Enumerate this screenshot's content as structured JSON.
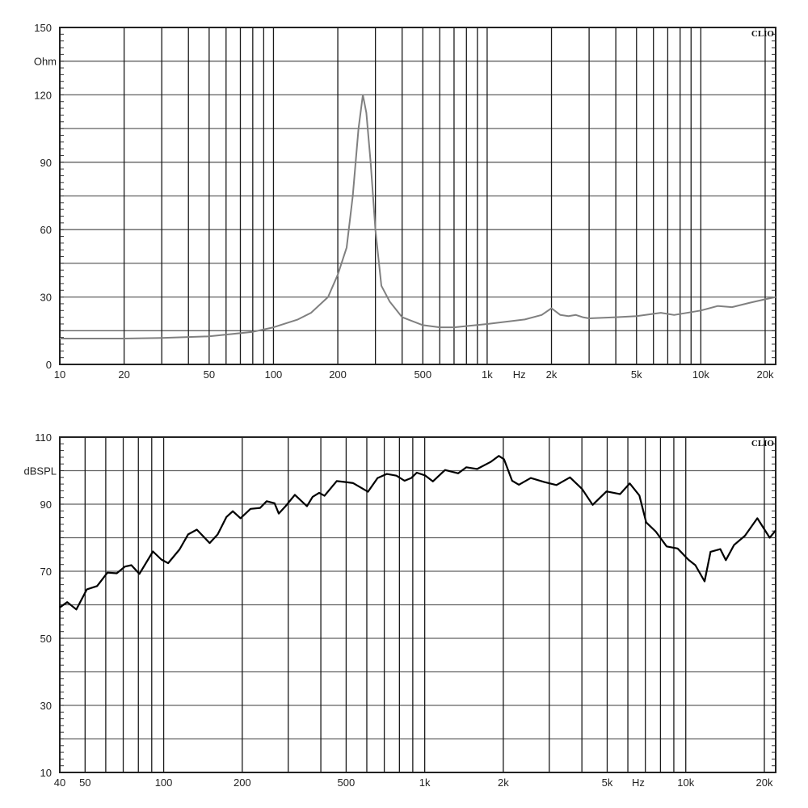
{
  "chart_data": [
    {
      "type": "line",
      "brand": "CLIO",
      "ylabel": "Ohm",
      "xlabel": "Hz",
      "xscale": "log",
      "xlim": [
        10,
        22400
      ],
      "ylim": [
        0,
        150
      ],
      "grid": true,
      "line_color": "#808080",
      "y_ticks": [
        0,
        30,
        60,
        90,
        120,
        150
      ],
      "y_tick_labels": [
        "0",
        "30",
        "60",
        "90",
        "120",
        "150"
      ],
      "y_gridlines": [
        15,
        30,
        45,
        60,
        75,
        90,
        105,
        120,
        135
      ],
      "x_gridlines": [
        20,
        30,
        40,
        50,
        60,
        70,
        80,
        90,
        100,
        200,
        300,
        400,
        500,
        600,
        700,
        800,
        900,
        1000,
        2000,
        3000,
        4000,
        5000,
        6000,
        7000,
        8000,
        9000,
        10000,
        20000
      ],
      "x_ticks": [
        10,
        20,
        50,
        100,
        200,
        500,
        1000,
        2000,
        5000,
        10000,
        20000
      ],
      "x_tick_labels": [
        "10",
        "20",
        "50",
        "100",
        "200",
        "500",
        "1k",
        "2k",
        "5k",
        "10k",
        "20k"
      ],
      "x": [
        10,
        20,
        30,
        50,
        80,
        100,
        130,
        150,
        180,
        200,
        220,
        235,
        250,
        262,
        272,
        285,
        300,
        320,
        350,
        400,
        500,
        600,
        700,
        1000,
        1500,
        1800,
        2000,
        2200,
        2400,
        2600,
        2800,
        3000,
        4000,
        5000,
        6500,
        7500,
        10000,
        12000,
        14000,
        17000,
        20000,
        22400
      ],
      "y": [
        11.5,
        11.5,
        11.8,
        12.5,
        14.5,
        16.5,
        20,
        23,
        30,
        40,
        52,
        75,
        105,
        120,
        112,
        90,
        60,
        35,
        28,
        21,
        17.5,
        16.5,
        16.5,
        18,
        20,
        22,
        25,
        22,
        21.5,
        22,
        21,
        20.5,
        21,
        21.5,
        23,
        22,
        24,
        26,
        25.5,
        27.5,
        29,
        30
      ]
    },
    {
      "type": "line",
      "brand": "CLIO",
      "ylabel": "dBSPL",
      "xlabel": "Hz",
      "xscale": "log",
      "xlim": [
        40,
        22100
      ],
      "ylim": [
        10,
        110
      ],
      "grid": true,
      "line_color": "#000000",
      "y_ticks": [
        10,
        30,
        50,
        70,
        90,
        110
      ],
      "y_tick_labels": [
        "10",
        "30",
        "50",
        "70",
        "90",
        "110"
      ],
      "y_gridlines": [
        20,
        30,
        40,
        50,
        60,
        70,
        80,
        90,
        100
      ],
      "x_gridlines": [
        50,
        60,
        70,
        80,
        90,
        100,
        200,
        300,
        400,
        500,
        600,
        700,
        800,
        900,
        1000,
        2000,
        3000,
        4000,
        5000,
        6000,
        7000,
        8000,
        9000,
        10000,
        20000
      ],
      "x_ticks": [
        40,
        50,
        100,
        200,
        500,
        1000,
        2000,
        5000,
        10000,
        20000
      ],
      "x_tick_labels": [
        "40",
        "50",
        "100",
        "200",
        "500",
        "1k",
        "2k",
        "5k",
        "10k",
        "20k"
      ],
      "x": [
        40,
        42.7,
        46.3,
        50.8,
        55.6,
        60.9,
        66.1,
        71.1,
        75.2,
        80.7,
        91,
        98,
        104,
        115,
        124,
        134,
        150,
        161,
        174,
        184,
        197,
        215,
        234,
        248,
        266,
        276,
        293,
        318,
        354,
        372,
        394,
        413,
        460,
        498,
        532,
        606,
        660,
        715,
        779,
        837,
        888,
        932,
        1002,
        1074,
        1196,
        1344,
        1444,
        1589,
        1788,
        1921,
        2013,
        2162,
        2294,
        2549,
        2870,
        3197,
        3600,
        4000,
        4400,
        4970,
        5600,
        6100,
        6640,
        7050,
        7680,
        8450,
        9300,
        10250,
        10880,
        11800,
        12440,
        13560,
        14240,
        15300,
        16860,
        18800,
        20970,
        22100
      ],
      "y": [
        59.2,
        60.8,
        58.6,
        64.6,
        65.6,
        69.6,
        69.4,
        71.4,
        71.8,
        69.2,
        75.9,
        73.5,
        72.4,
        76.5,
        81,
        82.4,
        78.4,
        81,
        86.2,
        87.9,
        85.8,
        88.6,
        88.9,
        90.9,
        90.3,
        87.2,
        89.4,
        92.8,
        89.4,
        92.2,
        93.4,
        92.5,
        96.9,
        96.6,
        96.3,
        93.7,
        97.8,
        99,
        98.5,
        97,
        97.8,
        99.4,
        98.6,
        96.8,
        100.2,
        99.2,
        101,
        100.5,
        102.6,
        104.4,
        103.4,
        97,
        95.8,
        97.8,
        96.6,
        95.7,
        98,
        94.6,
        89.8,
        93.8,
        93,
        96.2,
        92.6,
        84.6,
        81.8,
        77.4,
        76.8,
        73.4,
        71.8,
        67,
        75.8,
        76.6,
        73.3,
        77.8,
        80.6,
        85.8,
        80,
        82.2
      ]
    }
  ]
}
